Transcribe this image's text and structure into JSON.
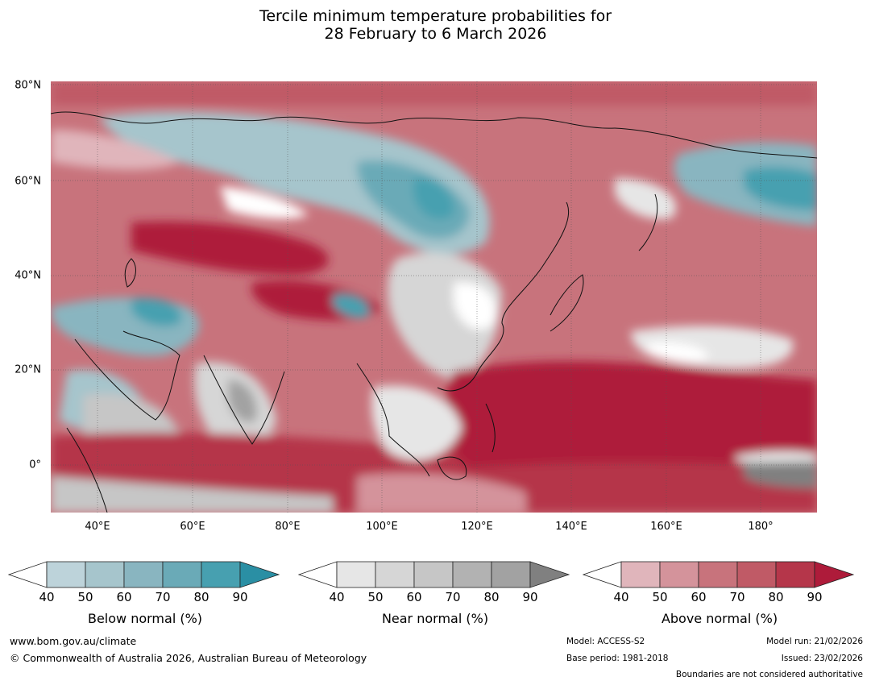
{
  "title": {
    "line1": "Tercile minimum temperature probabilities for",
    "line2": "28 February to 6 March 2026"
  },
  "map": {
    "lat_labels": [
      "80°N",
      "60°N",
      "40°N",
      "20°N",
      "0°"
    ],
    "lon_labels": [
      "40°E",
      "60°E",
      "80°E",
      "100°E",
      "120°E",
      "140°E",
      "160°E",
      "180°"
    ]
  },
  "legends": [
    {
      "title": "Below normal (%)",
      "ticks": [
        "40",
        "50",
        "60",
        "70",
        "80",
        "90"
      ],
      "colors": [
        "#ffffff",
        "#bdd3da",
        "#a6c5cc",
        "#89b5c0",
        "#6aaab7",
        "#47a0b0",
        "#2a8fa4"
      ]
    },
    {
      "title": "Near normal (%)",
      "ticks": [
        "40",
        "50",
        "60",
        "70",
        "80",
        "90"
      ],
      "colors": [
        "#ffffff",
        "#e6e6e6",
        "#d6d6d6",
        "#c6c6c6",
        "#b2b2b2",
        "#a2a2a2",
        "#808080"
      ]
    },
    {
      "title": "Above normal (%)",
      "ticks": [
        "40",
        "50",
        "60",
        "70",
        "80",
        "90"
      ],
      "colors": [
        "#ffffff",
        "#e0b5bb",
        "#d4939b",
        "#c8737c",
        "#c05a66",
        "#b5364a",
        "#ae1b3a"
      ]
    }
  ],
  "footer": {
    "url": "www.bom.gov.au/climate",
    "copyright": "© Commonwealth of Australia 2026, Australian Bureau of Meteorology",
    "model": "Model: ACCESS-S2",
    "base_period": "Base period: 1981-2018",
    "model_run": "Model run: 21/02/2026",
    "issued": "Issued: 23/02/2026",
    "boundaries": "Boundaries are not considered authoritative"
  }
}
